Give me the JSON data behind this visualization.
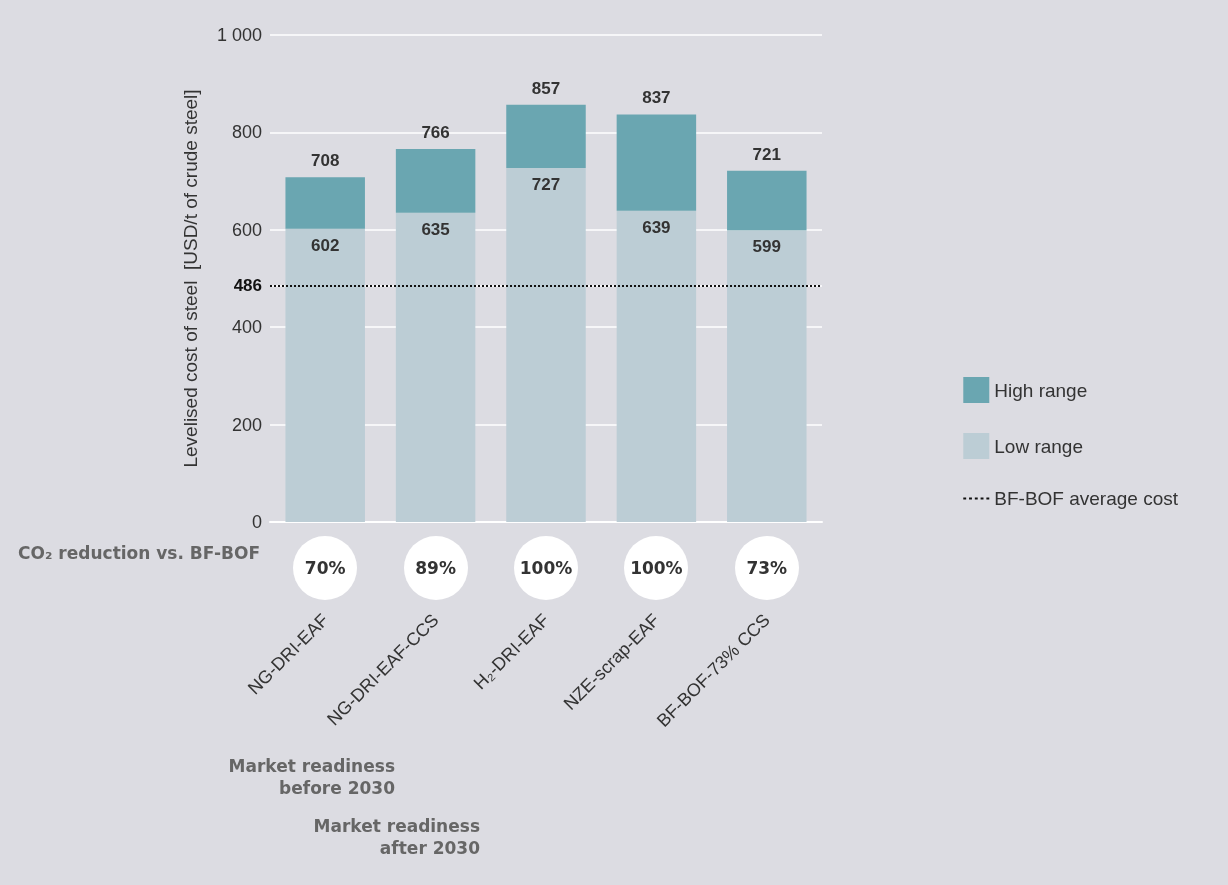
{
  "chart_data": {
    "type": "bar",
    "stacked": true,
    "ylabel": "Levelised cost of steel  [USD/t of crude steel]",
    "categories": [
      "NG-DRI-EAF",
      "NG-DRI-EAF-CCS",
      "H₂-DRI-EAF",
      "NZE-scrap-EAF",
      "BF-BOF-73% CCS"
    ],
    "series": [
      {
        "name": "Low range",
        "color": "#bccdd5",
        "values": [
          602,
          635,
          727,
          639,
          599
        ],
        "value_labels": [
          "602",
          "635",
          "727",
          "639",
          "599"
        ]
      },
      {
        "name": "High range",
        "color": "#6aa6b1",
        "values": [
          106,
          131,
          130,
          198,
          122
        ]
      }
    ],
    "totals": [
      "708",
      "766",
      "857",
      "837",
      "721"
    ],
    "ylim": [
      0,
      1000
    ],
    "yticks": [
      0,
      200,
      400,
      486,
      600,
      800,
      {
        "value": 1000,
        "label": "1 000"
      }
    ],
    "grid": "y",
    "legend": "right",
    "ref_lines": [
      {
        "axis": "y",
        "value": 486,
        "label": "BF-BOF average cost",
        "color": "#111111",
        "line_style": "dotted"
      }
    ],
    "annotations": [
      "CO₂ reduction vs. BF-BOF",
      "70%",
      "89%",
      "100%",
      "100%",
      "73%",
      "Market readiness before 2030",
      "Market readiness after 2030"
    ]
  }
}
